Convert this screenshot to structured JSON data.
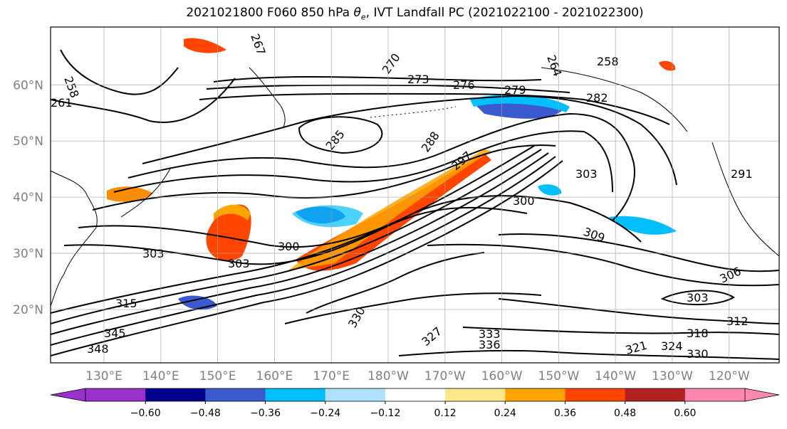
{
  "title_prefix": "2021021800 F060 850 hPa ",
  "title_symbol": "θ",
  "title_symbol_sub": "e",
  "title_suffix": ", IVT Landfall PC (2021022100 - 2021022300)",
  "lat_labels": [
    "60°N",
    "50°N",
    "40°N",
    "30°N",
    "20°N"
  ],
  "lat_values": [
    60,
    50,
    40,
    30,
    20
  ],
  "lon_labels": [
    "130°E",
    "140°E",
    "150°E",
    "160°E",
    "170°E",
    "180°W",
    "170°W",
    "160°W",
    "150°W",
    "140°W",
    "130°W",
    "120°W"
  ],
  "lon_values": [
    130,
    140,
    150,
    160,
    170,
    180,
    190,
    200,
    210,
    220,
    230,
    240
  ],
  "colorbar": {
    "bounds": [
      -0.72,
      -0.6,
      -0.48,
      -0.36,
      -0.24,
      -0.12,
      0.12,
      0.24,
      0.36,
      0.48,
      0.6,
      0.72
    ],
    "tick_labels": [
      "−0.60",
      "−0.48",
      "−0.36",
      "−0.24",
      "−0.12",
      "0.12",
      "0.24",
      "0.36",
      "0.48",
      "0.60"
    ],
    "colors": [
      "#9932cc",
      "#00008b",
      "#3a5bd0",
      "#00bfff",
      "#b0e2ff",
      "#ffffff",
      "#ffe88a",
      "#ffa500",
      "#ff4500",
      "#b22222",
      "#ff88b0"
    ],
    "under_color": "#9932cc",
    "over_color": "#ff88b0"
  },
  "contour_labels": [
    "258",
    "261",
    "267",
    "270",
    "273",
    "276",
    "279",
    "282",
    "285",
    "288",
    "291",
    "297",
    "300",
    "303",
    "306",
    "309",
    "312",
    "315",
    "318",
    "321",
    "324",
    "327",
    "330",
    "333",
    "336",
    "345",
    "348",
    "264"
  ]
}
